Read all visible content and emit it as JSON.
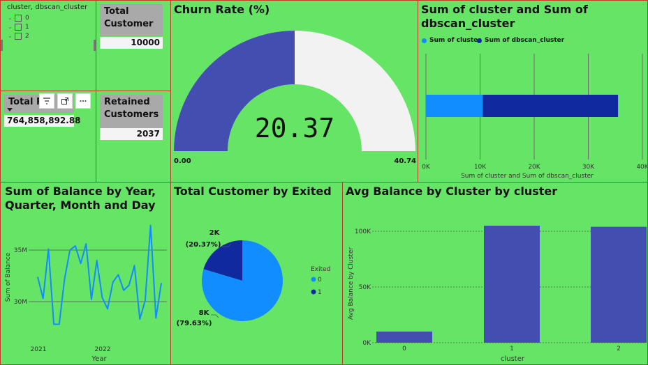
{
  "slicer": {
    "header": "cluster, dbscan_cluster",
    "items": [
      "0",
      "1",
      "2"
    ]
  },
  "total_customer": {
    "label": "Total Customer",
    "value": "10000"
  },
  "total_balance": {
    "label": "Total Re",
    "value": "764,858,892.88"
  },
  "retained": {
    "label": "Retained Customers",
    "value": "2037"
  },
  "toolbar": {
    "icons": [
      "filter-icon",
      "focus-mode-icon",
      "more-options-icon"
    ]
  },
  "churn": {
    "title": "Churn Rate (%)",
    "value_label": "20.37",
    "min_label": "0.00",
    "max_label": "40.74"
  },
  "colors": {
    "background": "#66e466",
    "navy": "#11299f",
    "blue": "#118dff",
    "indigo": "#434fb0",
    "border": "#c23b2a"
  },
  "chart_data": [
    {
      "type": "gauge",
      "title": "Churn Rate (%)",
      "value": 20.37,
      "min": 0,
      "max": 40.74
    },
    {
      "type": "bar",
      "orientation": "horizontal",
      "stacked": true,
      "title": "Sum of cluster and Sum of dbscan_cluster",
      "xlabel": "Sum of cluster and Sum of dbscan_cluster",
      "xlim": [
        0,
        40000
      ],
      "xticks": [
        "0K",
        "10K",
        "20K",
        "30K",
        "40K"
      ],
      "grid": true,
      "legend": "top-left",
      "series": [
        {
          "name": "Sum of cluster",
          "values": [
            10500
          ]
        },
        {
          "name": "Sum of dbscan_cluster",
          "values": [
            25000
          ]
        }
      ]
    },
    {
      "type": "line",
      "title": "Sum of Balance by Year, Quarter, Month and Day",
      "xlabel": "Year",
      "ylabel": "Sum of Balance",
      "xticks": [
        "2021",
        "2022"
      ],
      "yticks": [
        "30M",
        "35M"
      ],
      "grid": true,
      "series": [
        {
          "values": [
            32.4,
            30.3,
            35.1,
            27.8,
            27.8,
            32.2,
            35.0,
            35.4,
            33.7,
            35.6,
            30.2,
            34.0,
            30.4,
            29.3,
            31.9,
            32.6,
            31.1,
            31.6,
            33.5,
            28.3,
            30.1,
            37.4,
            28.4,
            31.8
          ]
        }
      ]
    },
    {
      "type": "pie",
      "title": "Total Customer by Exited",
      "legend": "right",
      "legend_title": "Exited",
      "categories": [
        "0",
        "1"
      ],
      "values": [
        79.63,
        20.37
      ],
      "labels": [
        "8K\n(79.63%)",
        "2K\n(20.37%)"
      ]
    },
    {
      "type": "bar",
      "title": "Avg Balance by Cluster by cluster",
      "xlabel": "cluster",
      "ylabel": "Avg Balance by Cluster",
      "categories": [
        "0",
        "1",
        "2"
      ],
      "values": [
        10000,
        105000,
        104000
      ],
      "ylim": [
        0,
        110000
      ],
      "yticks": [
        "0K",
        "50K",
        "100K"
      ],
      "grid": true
    }
  ]
}
